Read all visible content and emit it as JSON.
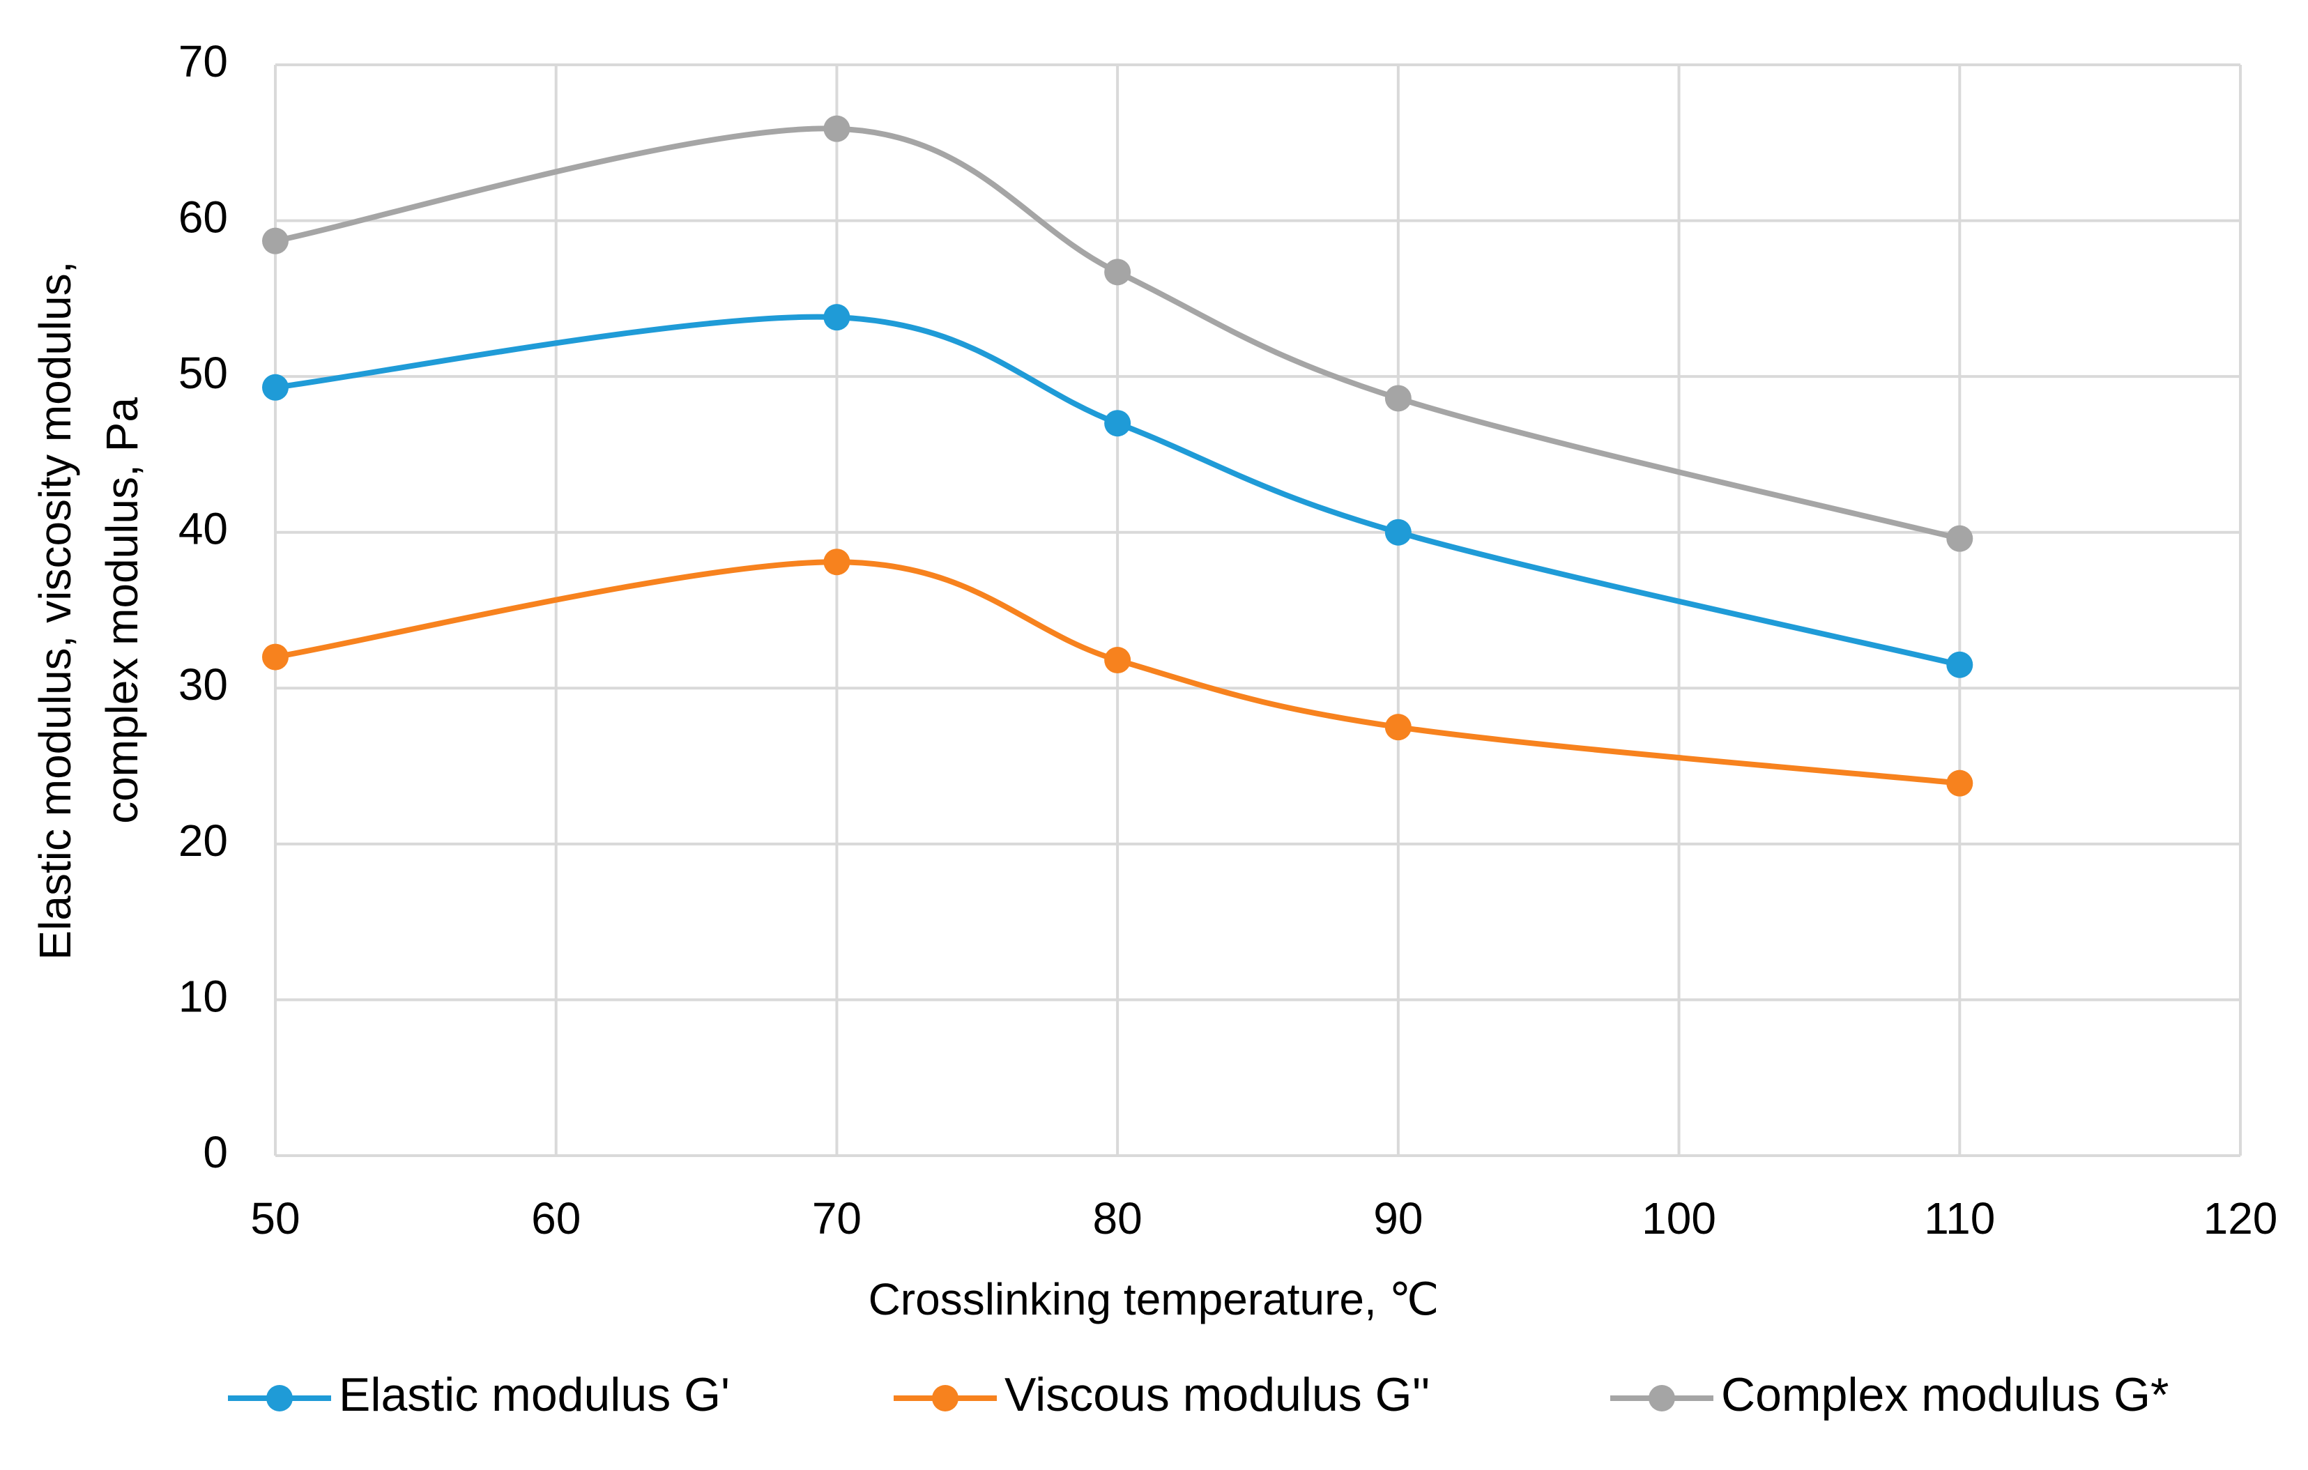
{
  "chart_data": {
    "type": "line",
    "smooth": true,
    "xlabel": "Crosslinking temperature, ℃",
    "ylabel": [
      "Elastic modulus, viscosity modulus,",
      "complex modulus, Pa"
    ],
    "x": [
      50,
      70,
      80,
      90,
      110
    ],
    "series": [
      {
        "name": "Elastic modulus G'",
        "color": "#1f9bd7",
        "values": [
          49.3,
          53.8,
          47.0,
          40.0,
          31.5
        ]
      },
      {
        "name": "Viscous modulus G''",
        "color": "#f7821e",
        "values": [
          32.0,
          38.1,
          31.8,
          27.5,
          23.9
        ]
      },
      {
        "name": "Complex modulus G*",
        "color": "#a5a5a5",
        "values": [
          58.7,
          65.9,
          56.7,
          48.6,
          39.6
        ]
      }
    ],
    "xlim": [
      50,
      120
    ],
    "xticks": [
      50,
      60,
      70,
      80,
      90,
      100,
      110,
      120
    ],
    "ylim": [
      0,
      70
    ],
    "yticks": [
      0,
      10,
      20,
      30,
      40,
      50,
      60,
      70
    ],
    "grid": true,
    "legend": "bottom"
  }
}
